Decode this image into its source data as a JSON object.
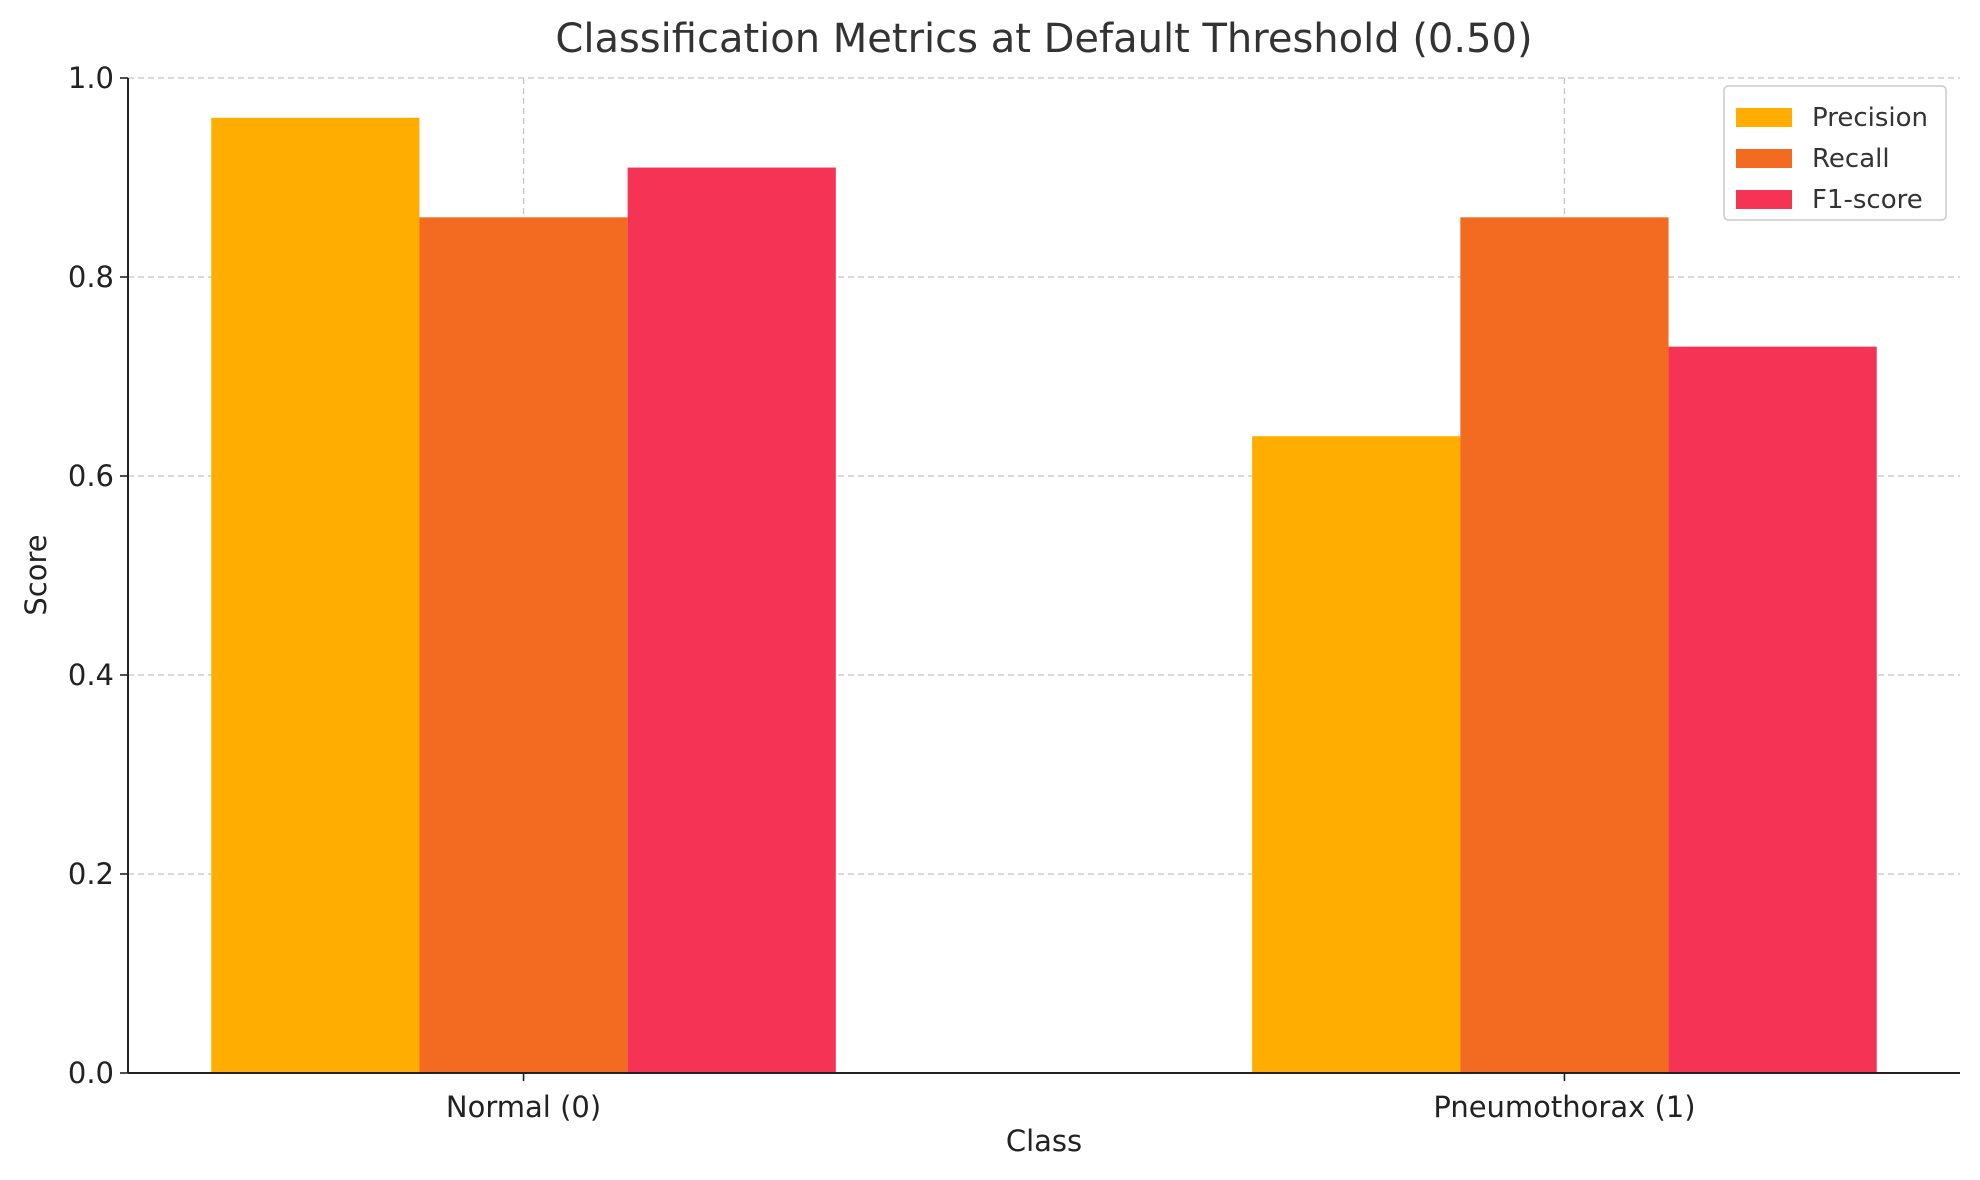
{
  "chart_data": {
    "type": "bar",
    "title": "Classification Metrics at Default Threshold (0.50)",
    "xlabel": "Class",
    "ylabel": "Score",
    "categories": [
      "Normal (0)",
      "Pneumothorax (1)"
    ],
    "series": [
      {
        "name": "Precision",
        "color": "#FFAE00",
        "values": [
          0.96,
          0.64
        ]
      },
      {
        "name": "Recall",
        "color": "#F26B21",
        "values": [
          0.86,
          0.86
        ]
      },
      {
        "name": "F1-score",
        "color": "#F53354",
        "values": [
          0.91,
          0.73
        ]
      }
    ],
    "ylim": [
      0,
      1.0
    ],
    "yticks": [
      "0.0",
      "0.2",
      "0.4",
      "0.6",
      "0.8",
      "1.0"
    ],
    "grid": true,
    "legend_position": "top-right"
  }
}
